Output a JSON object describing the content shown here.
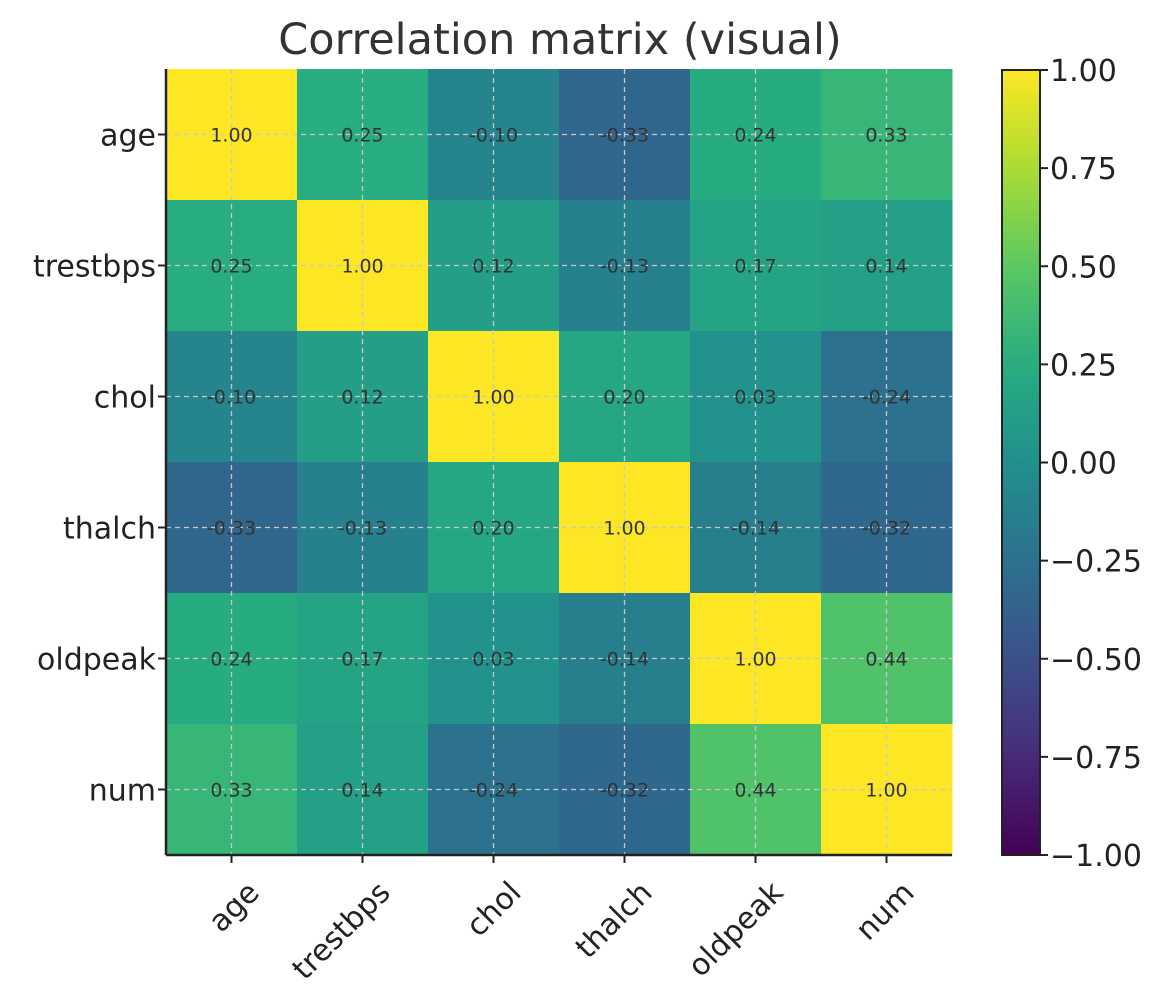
{
  "chart_data": {
    "type": "heatmap",
    "title": "Correlation matrix (visual)",
    "x_labels": [
      "age",
      "trestbps",
      "chol",
      "thalch",
      "oldpeak",
      "num"
    ],
    "y_labels": [
      "age",
      "trestbps",
      "chol",
      "thalch",
      "oldpeak",
      "num"
    ],
    "values": [
      [
        1.0,
        0.25,
        -0.1,
        -0.33,
        0.24,
        0.33
      ],
      [
        0.25,
        1.0,
        0.12,
        -0.13,
        0.17,
        0.14
      ],
      [
        -0.1,
        0.12,
        1.0,
        0.2,
        0.03,
        -0.24
      ],
      [
        -0.33,
        -0.13,
        0.2,
        1.0,
        -0.14,
        -0.32
      ],
      [
        0.24,
        0.17,
        0.03,
        -0.14,
        1.0,
        0.44
      ],
      [
        0.33,
        0.14,
        -0.24,
        -0.32,
        0.44,
        1.0
      ]
    ],
    "cell_labels": [
      [
        "1.00",
        "0.25",
        "-0.10",
        "-0.33",
        "0.24",
        "0.33"
      ],
      [
        "0.25",
        "1.00",
        "0.12",
        "-0.13",
        "0.17",
        "0.14"
      ],
      [
        "-0.10",
        "0.12",
        "1.00",
        "0.20",
        "0.03",
        "-0.24"
      ],
      [
        "-0.33",
        "-0.13",
        "0.20",
        "1.00",
        "-0.14",
        "-0.32"
      ],
      [
        "0.24",
        "0.17",
        "0.03",
        "-0.14",
        "1.00",
        "0.44"
      ],
      [
        "0.33",
        "0.14",
        "-0.24",
        "-0.32",
        "0.44",
        "1.00"
      ]
    ],
    "colormap": "viridis",
    "vmin": -1,
    "vmax": 1,
    "colorbar": {
      "ticks": [
        1.0,
        0.75,
        0.5,
        0.25,
        0.0,
        -0.25,
        -0.5,
        -0.75,
        -1.0
      ],
      "tick_labels": [
        "1.00",
        "0.75",
        "0.50",
        "0.25",
        "0.00",
        "−0.25",
        "−0.50",
        "−0.75",
        "−1.00"
      ]
    },
    "grid": true,
    "xtick_rotation_deg": 45
  }
}
